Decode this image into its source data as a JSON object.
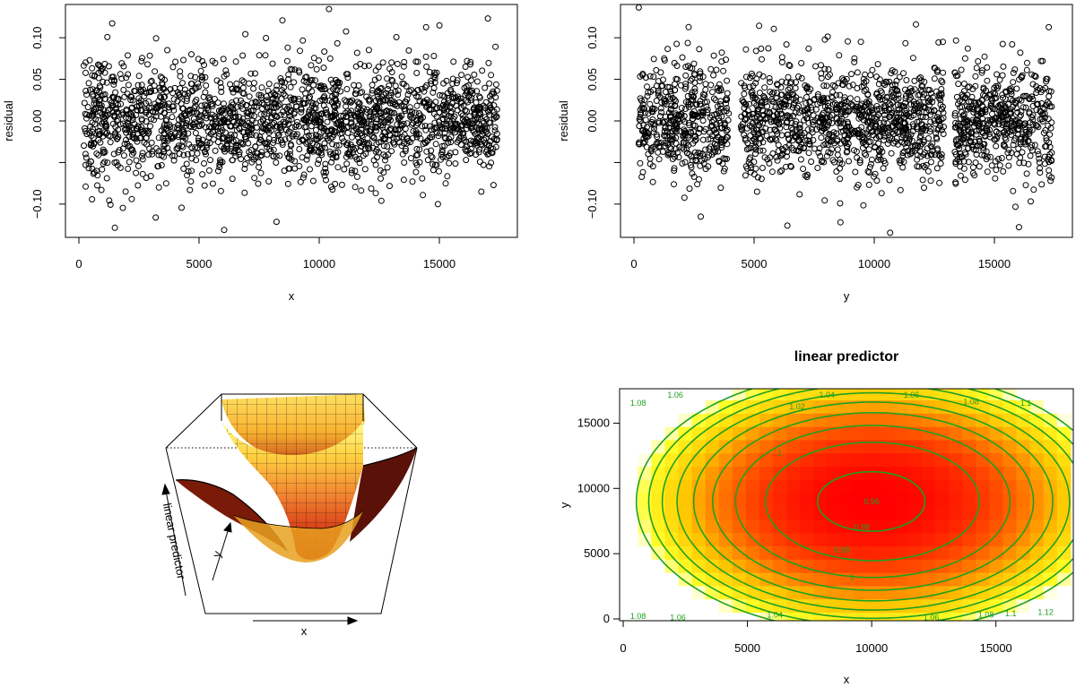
{
  "chart_data": [
    {
      "type": "scatter",
      "xlabel": "x",
      "ylabel": "residual",
      "xlim": [
        0,
        17500
      ],
      "ylim": [
        -0.14,
        0.14
      ],
      "xticks": [
        0,
        5000,
        10000,
        15000
      ],
      "yticks": [
        -0.1,
        -0.05,
        0.0,
        0.05,
        0.1
      ],
      "ytick_labels": [
        "-0.10",
        "",
        "0.00",
        "0.05",
        "0.10"
      ],
      "marker": "open-circle",
      "n_points": 2000,
      "residual_sd": 0.033
    },
    {
      "type": "scatter",
      "xlabel": "y",
      "ylabel": "residual",
      "xlim": [
        0,
        17500
      ],
      "ylim": [
        -0.14,
        0.14
      ],
      "xticks": [
        0,
        5000,
        10000,
        15000
      ],
      "yticks": [
        -0.1,
        -0.05,
        0.0,
        0.05,
        0.1
      ],
      "ytick_labels": [
        "-0.10",
        "",
        "0.00",
        "0.05",
        "0.10"
      ],
      "marker": "open-circle",
      "n_points": 2000,
      "residual_sd": 0.033,
      "gaps": [
        [
          3950,
          4450
        ],
        [
          12900,
          13350
        ]
      ]
    },
    {
      "type": "surface",
      "xlabel": "x",
      "zlabel": "linear predictor",
      "ylabel": "y",
      "colormap": "heat"
    },
    {
      "type": "heatmap",
      "title": "linear predictor",
      "xlabel": "x",
      "ylabel": "y",
      "xlim": [
        0,
        17500
      ],
      "ylim": [
        0,
        17500
      ],
      "xticks": [
        0,
        5000,
        10000,
        15000
      ],
      "yticks": [
        0,
        5000,
        10000,
        15000
      ],
      "colormap": "heat",
      "contour_color": "#1fa01f",
      "contour_levels": [
        0.96,
        0.98,
        1.0,
        1.02,
        1.04,
        1.06,
        1.08,
        1.1,
        1.12
      ],
      "contour_labels": [
        {
          "text": "0.96",
          "x": 10000,
          "y": 9000
        },
        {
          "text": "0.98",
          "x": 9600,
          "y": 7050
        },
        {
          "text": "0.98",
          "x": 8800,
          "y": 5300
        },
        {
          "text": "1",
          "x": 6300,
          "y": 12700
        },
        {
          "text": "1",
          "x": 9200,
          "y": 3200
        },
        {
          "text": "1.02",
          "x": 7000,
          "y": 16250
        },
        {
          "text": "1.04",
          "x": 8200,
          "y": 17150
        },
        {
          "text": "1.04",
          "x": 6100,
          "y": 300
        },
        {
          "text": "1.06",
          "x": 2100,
          "y": 17150
        },
        {
          "text": "1.06",
          "x": 11600,
          "y": 17150
        },
        {
          "text": "1.06",
          "x": 2200,
          "y": 100
        },
        {
          "text": "1.06",
          "x": 12400,
          "y": 100
        },
        {
          "text": "1.08",
          "x": 600,
          "y": 16550
        },
        {
          "text": "1.08",
          "x": 14000,
          "y": 16650
        },
        {
          "text": "1.08",
          "x": 600,
          "y": 200
        },
        {
          "text": "1.08",
          "x": 14600,
          "y": 300
        },
        {
          "text": "1.1",
          "x": 16200,
          "y": 16550
        },
        {
          "text": "1.1",
          "x": 15600,
          "y": 400
        },
        {
          "text": "1.12",
          "x": 17000,
          "y": 500
        }
      ],
      "surface_model": {
        "center": [
          10200,
          9000
        ],
        "min": 0.955,
        "ax": 9300,
        "ay": 9800
      }
    }
  ]
}
